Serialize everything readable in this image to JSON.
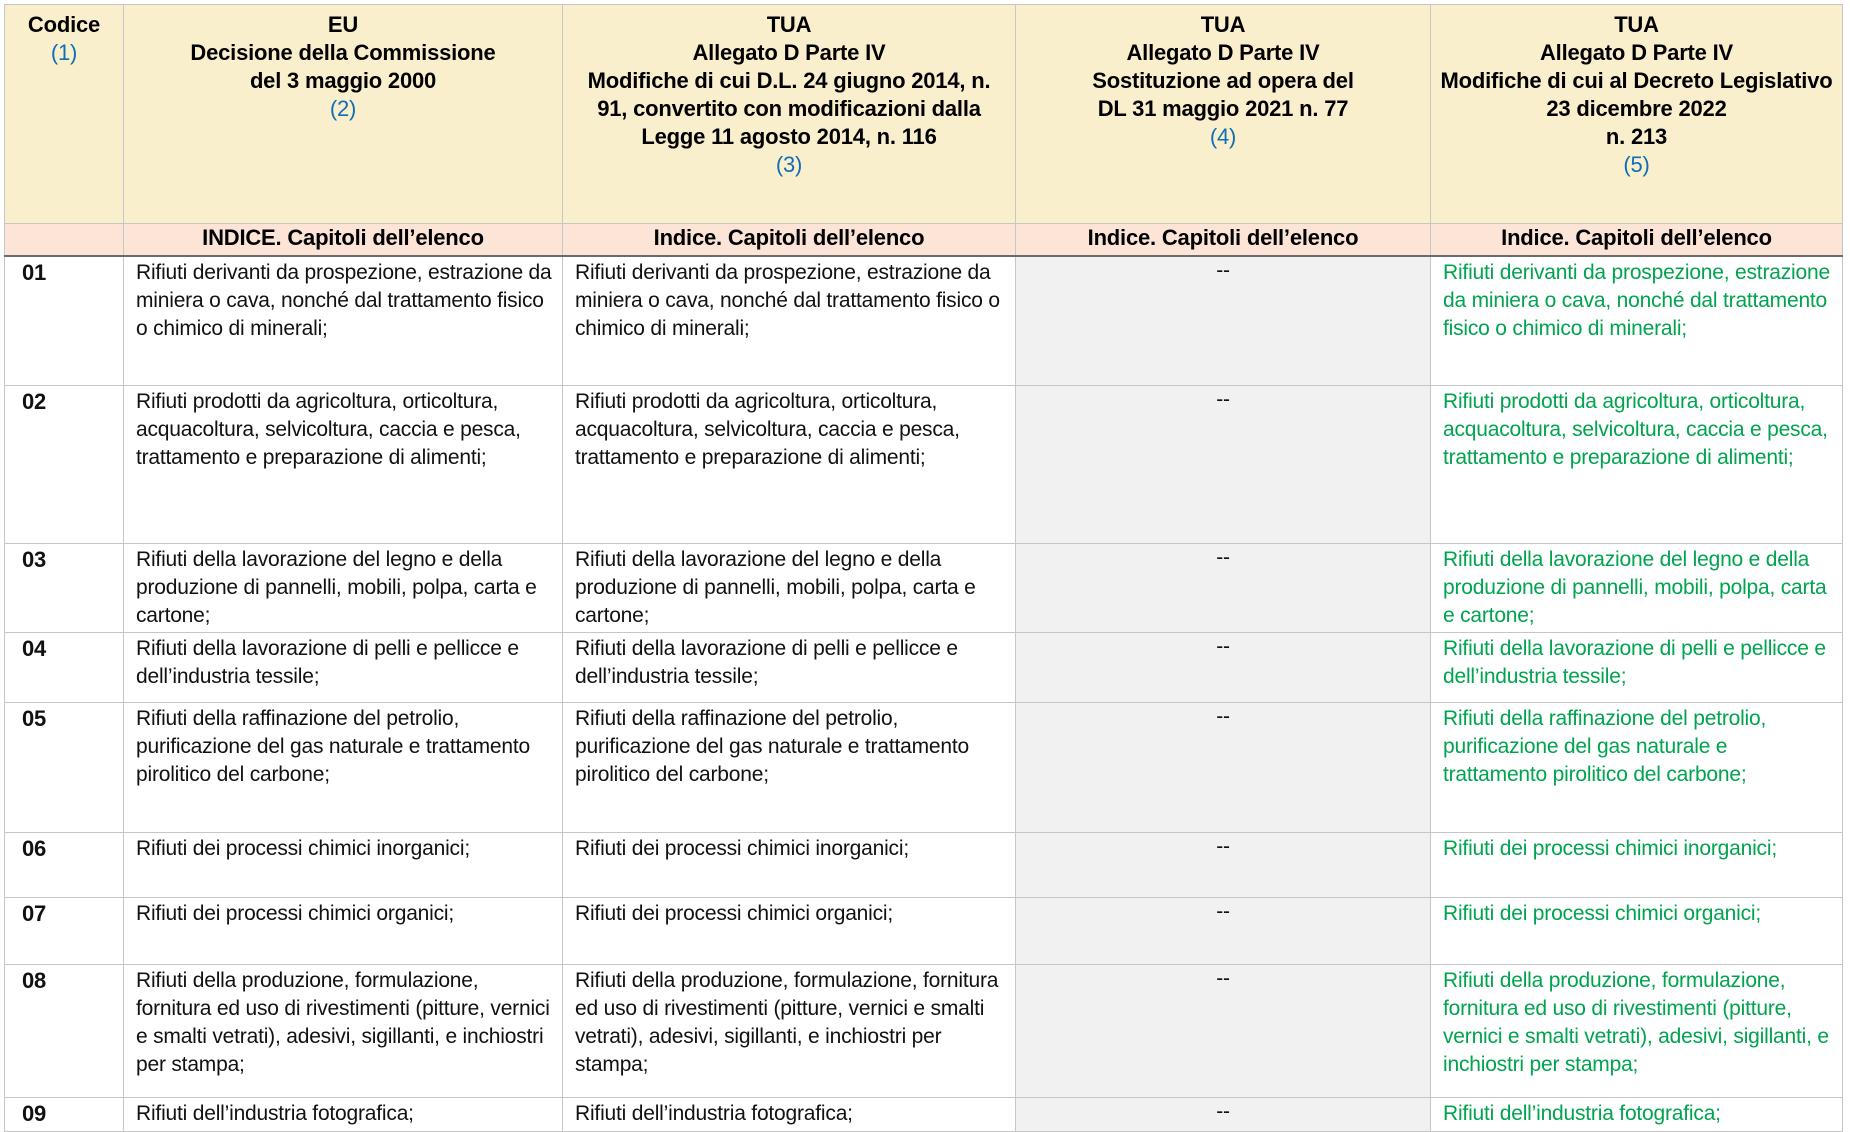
{
  "accent_colors": {
    "header_bg": "#faefcd",
    "subheader_bg": "#fce4d6",
    "muted_cell_bg": "#f1f1f1",
    "added_text_green": "#00a44f",
    "reference_blue": "#0f6eb4"
  },
  "header": {
    "columns": [
      {
        "title": "Codice",
        "ref": "(1)"
      },
      {
        "title": "EU\nDecisione della Commissione\ndel 3 maggio 2000",
        "ref": "(2)"
      },
      {
        "title": "TUA\nAllegato D Parte IV\nModifiche di cui D.L. 24 giugno 2014, n. 91, convertito con modificazioni dalla\nLegge 11 agosto 2014, n. 116",
        "ref": "(3)"
      },
      {
        "title": "TUA\nAllegato D Parte IV\nSostituzione ad opera del\nDL 31 maggio 2021 n. 77",
        "ref": "(4)"
      },
      {
        "title": "TUA\nAllegato D Parte IV\nModifiche di cui al Decreto Legislativo 23 dicembre 2022\nn. 213",
        "ref": "(5)"
      }
    ]
  },
  "subheader": {
    "labels": [
      "",
      "INDICE. Capitoli dell’elenco",
      "Indice. Capitoli dell’elenco",
      "Indice. Capitoli dell’elenco",
      "Indice. Capitoli dell’elenco"
    ]
  },
  "rows": [
    {
      "code": "01",
      "eu": "Rifiuti derivanti da prospezione, estrazione da miniera o cava, nonché dal trattamento fisico o chimico di minerali;",
      "tua_2014": "Rifiuti derivanti da prospezione, estrazione da miniera o cava, nonché dal trattamento fisico o chimico di minerali;",
      "tua_2021": "--",
      "tua_2022": "Rifiuti derivanti da prospezione, estrazione da miniera o cava, nonché dal trattamento fisico o chimico di minerali;"
    },
    {
      "code": "02",
      "eu": "Rifiuti prodotti da agricoltura, orticoltura, acquacoltura, selvicoltura, caccia e pesca, trattamento e preparazione di alimenti;",
      "tua_2014": "Rifiuti prodotti da agricoltura, orticoltura, acquacoltura, selvicoltura, caccia e pesca, trattamento e preparazione di alimenti;",
      "tua_2021": "--",
      "tua_2022": "Rifiuti prodotti da agricoltura, orticoltura, acquacoltura, selvicoltura, caccia e pesca, trattamento e preparazione di alimenti;"
    },
    {
      "code": "03",
      "eu": "Rifiuti della lavorazione del legno e della produzione di pannelli, mobili, polpa, carta e cartone;",
      "tua_2014": "Rifiuti della lavorazione del legno e della produzione di pannelli, mobili, polpa, carta e cartone;",
      "tua_2021": "--",
      "tua_2022": "Rifiuti della lavorazione del legno e della produzione di pannelli, mobili, polpa, carta e cartone;"
    },
    {
      "code": "04",
      "eu": "Rifiuti della lavorazione di pelli e pellicce e dell’industria tessile;",
      "tua_2014": "Rifiuti della lavorazione di pelli e pellicce e dell’industria tessile;",
      "tua_2021": "--",
      "tua_2022": "Rifiuti della lavorazione di pelli e pellicce e dell’industria tessile;"
    },
    {
      "code": "05",
      "eu": "Rifiuti della raffinazione del petrolio, purificazione del gas naturale e trattamento pirolitico del carbone;",
      "tua_2014": "Rifiuti della raffinazione del petrolio, purificazione del gas naturale e trattamento pirolitico del carbone;",
      "tua_2021": "--",
      "tua_2022": "Rifiuti della raffinazione del petrolio, purificazione del gas naturale e trattamento pirolitico del carbone;"
    },
    {
      "code": "06",
      "eu": "Rifiuti dei processi chimici inorganici;",
      "tua_2014": "Rifiuti dei processi chimici inorganici;",
      "tua_2021": "--",
      "tua_2022": "Rifiuti dei processi chimici inorganici;"
    },
    {
      "code": "07",
      "eu": "Rifiuti dei processi chimici organici;",
      "tua_2014": "Rifiuti dei processi chimici organici;",
      "tua_2021": "--",
      "tua_2022": "Rifiuti dei processi chimici organici;"
    },
    {
      "code": "08",
      "eu": "Rifiuti della produzione, formulazione, fornitura ed uso di rivestimenti (pitture, vernici e smalti vetrati), adesivi, sigillanti, e inchiostri per stampa;",
      "tua_2014": "Rifiuti della produzione, formulazione, fornitura ed uso di rivestimenti (pitture, vernici e smalti vetrati), adesivi, sigillanti, e inchiostri per stampa;",
      "tua_2021": "--",
      "tua_2022": "Rifiuti della produzione, formulazione, fornitura ed uso di rivestimenti (pitture, vernici e smalti vetrati), adesivi, sigillanti, e inchiostri per stampa;"
    },
    {
      "code": "09",
      "eu": "Rifiuti dell’industria fotografica;",
      "tua_2014": "Rifiuti dell’industria fotografica;",
      "tua_2021": "--",
      "tua_2022": "Rifiuti dell’industria fotografica;"
    }
  ]
}
